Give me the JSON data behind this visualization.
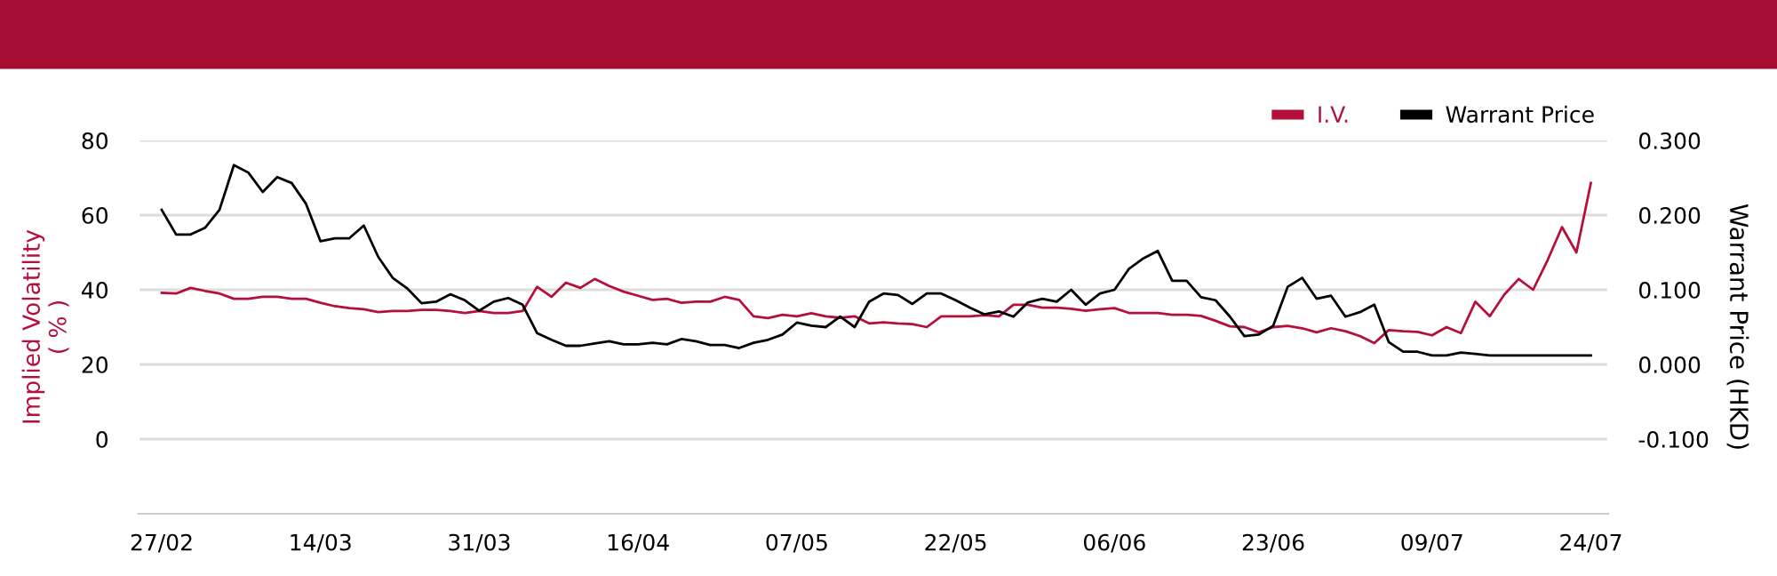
{
  "chart_data": {
    "type": "line",
    "categories": [
      "27/02",
      null,
      null,
      null,
      null,
      null,
      null,
      null,
      null,
      null,
      null,
      "14/03",
      null,
      null,
      null,
      null,
      null,
      null,
      null,
      null,
      null,
      null,
      "31/03",
      null,
      null,
      null,
      null,
      null,
      null,
      null,
      null,
      null,
      null,
      "16/04",
      null,
      null,
      null,
      null,
      null,
      null,
      null,
      null,
      null,
      null,
      "07/05",
      null,
      null,
      null,
      null,
      null,
      null,
      null,
      null,
      null,
      null,
      "22/05",
      null,
      null,
      null,
      null,
      null,
      null,
      null,
      null,
      null,
      null,
      "06/06",
      null,
      null,
      null,
      null,
      null,
      null,
      null,
      null,
      null,
      null,
      "23/06",
      null,
      null,
      null,
      null,
      null,
      null,
      null,
      null,
      null,
      null,
      "09/07",
      null,
      null,
      null,
      null,
      null,
      null,
      null,
      null,
      null,
      null,
      "24/07"
    ],
    "series": [
      {
        "name": "I.V.",
        "color": "#b5103c",
        "values": [
          39.2,
          39.0,
          40.5,
          39.7,
          39.0,
          37.6,
          37.6,
          38.1,
          38.1,
          37.6,
          37.6,
          36.5,
          35.6,
          35.1,
          34.8,
          34.0,
          34.3,
          34.3,
          34.6,
          34.6,
          34.3,
          33.8,
          34.3,
          33.8,
          33.8,
          34.3,
          40.8,
          38.1,
          41.9,
          40.5,
          42.9,
          41.0,
          39.5,
          38.4,
          37.3,
          37.6,
          36.5,
          36.8,
          36.8,
          38.1,
          37.3,
          32.9,
          32.4,
          33.3,
          32.9,
          33.7,
          32.9,
          32.5,
          32.9,
          31.0,
          31.3,
          31.0,
          30.8,
          30.0,
          32.9,
          32.9,
          32.9,
          33.2,
          32.9,
          36.0,
          36.0,
          35.2,
          35.2,
          34.9,
          34.4,
          34.8,
          35.1,
          33.8,
          33.8,
          33.8,
          33.3,
          33.3,
          33.0,
          31.7,
          30.2,
          30.0,
          28.6,
          30.0,
          30.3,
          29.7,
          28.6,
          29.7,
          28.9,
          27.6,
          25.7,
          29.2,
          28.9,
          28.7,
          27.8,
          30.0,
          28.4,
          36.8,
          32.9,
          38.7,
          42.9,
          40.0,
          47.9,
          56.8,
          50.0,
          68.6
        ]
      },
      {
        "name": "Warrant Price",
        "color": "#000000",
        "axis": "y2",
        "values": [
          0.207,
          0.174,
          0.174,
          0.183,
          0.207,
          0.267,
          0.257,
          0.231,
          0.251,
          0.243,
          0.215,
          0.165,
          0.169,
          0.169,
          0.186,
          0.144,
          0.116,
          0.102,
          0.082,
          0.084,
          0.094,
          0.086,
          0.072,
          0.084,
          0.089,
          0.08,
          0.042,
          0.033,
          0.025,
          0.025,
          0.028,
          0.031,
          0.027,
          0.027,
          0.029,
          0.027,
          0.034,
          0.031,
          0.026,
          0.026,
          0.022,
          0.029,
          0.033,
          0.04,
          0.056,
          0.052,
          0.05,
          0.064,
          0.05,
          0.084,
          0.095,
          0.093,
          0.081,
          0.095,
          0.095,
          0.086,
          0.076,
          0.067,
          0.071,
          0.064,
          0.083,
          0.088,
          0.084,
          0.1,
          0.08,
          0.095,
          0.1,
          0.128,
          0.142,
          0.152,
          0.112,
          0.112,
          0.09,
          0.086,
          0.064,
          0.038,
          0.04,
          0.052,
          0.104,
          0.116,
          0.088,
          0.092,
          0.064,
          0.07,
          0.08,
          0.03,
          0.017,
          0.017,
          0.012,
          0.012,
          0.016,
          0.014,
          0.012,
          0.012,
          0.012,
          0.012,
          0.012,
          0.012,
          0.012,
          0.012
        ]
      }
    ],
    "ylabel": "Implied Volatility\n( % )",
    "y2label": "Warrant Price (HKD)",
    "ylim": [
      -20,
      80
    ],
    "yticks": [
      0,
      20,
      40,
      60,
      80
    ],
    "y2lim": [
      -0.2,
      0.3
    ],
    "y2ticks": [
      {
        "value": -0.1,
        "label": "-0.100"
      },
      {
        "value": 0.0,
        "label": "0.000"
      },
      {
        "value": 0.1,
        "label": "0.100"
      },
      {
        "value": 0.2,
        "label": "0.200"
      },
      {
        "value": 0.3,
        "label": "0.300"
      }
    ],
    "grid": "y",
    "legend": "top right",
    "marker": "none",
    "line_style": "solid"
  }
}
